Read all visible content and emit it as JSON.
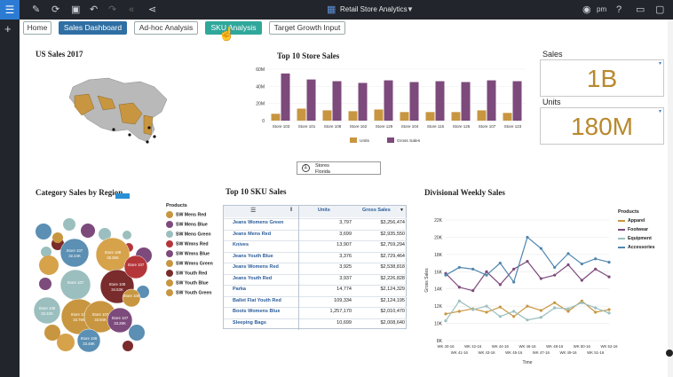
{
  "topbar": {
    "title": "Retail Store Analytics",
    "user": "pm",
    "icons": [
      "menu-icon",
      "pencil-icon",
      "refresh-icon",
      "save-icon",
      "undo-icon",
      "redo-icon",
      "rewind-icon",
      "share-icon",
      "dashboard-icon",
      "chevron-down-icon",
      "user-icon",
      "help-icon",
      "image-icon",
      "comment-icon"
    ]
  },
  "tabs": [
    "Home",
    "Sales Dashboard",
    "Ad-hoc Analysis",
    "SKU Analysis",
    "Target Growth Input"
  ],
  "us_sales": {
    "title": "US Sales 2017"
  },
  "store_sales": {
    "title": "Top 10 Store Sales"
  },
  "filter": {
    "label1": "Stores",
    "label2": "Florida"
  },
  "kpi": {
    "sales_title": "Sales",
    "sales_value": "1B",
    "units_title": "Units",
    "units_value": "180M"
  },
  "category": {
    "title": "Category Sales by Region",
    "legend_title": "Products",
    "products": [
      "SW Mens Red",
      "SW Mens Blue",
      "SW Mens Green",
      "SW Wmns Red",
      "SW Wmns Blue",
      "SW Wmns Green",
      "SW Youth Red",
      "SW Youth Blue",
      "SW Youth Green"
    ],
    "bubbles": [
      {
        "label": "Store 107",
        "value": "32.24K",
        "color": "#5b8fb3"
      },
      {
        "label": "Store 108",
        "value": "35.36K",
        "color": "#d6a24a"
      },
      {
        "label": "Store 107",
        "value": "",
        "color": "#9bbfbe"
      },
      {
        "label": "Store 108",
        "value": "33.76K",
        "color": "#c89640"
      },
      {
        "label": "Store 108",
        "value": "34.53K",
        "color": "#7a2b2b"
      },
      {
        "label": "Store 108",
        "value": "32.22K",
        "color": "#9bbfbe"
      },
      {
        "label": "Store 107",
        "value": "33.94K",
        "color": "#c89640"
      },
      {
        "label": "Store 107",
        "value": "33.28K",
        "color": "#7d4a7c"
      },
      {
        "label": "Store 108",
        "value": "33.48K",
        "color": "#5b8fb3"
      },
      {
        "label": "Store 107",
        "value": "",
        "color": "#b5363a"
      },
      {
        "label": "Store 108",
        "value": "",
        "color": "#c89640"
      }
    ]
  },
  "sku": {
    "title": "Top 10 SKU Sales",
    "headers": [
      "Units",
      "Gross Sales"
    ],
    "rows": [
      {
        "name": "Jeans Womens Green",
        "units": "3,797",
        "gross": "$3,256,474"
      },
      {
        "name": "Jeans Mens Red",
        "units": "3,699",
        "gross": "$2,935,550"
      },
      {
        "name": "Knives",
        "units": "13,907",
        "gross": "$2,759,294"
      },
      {
        "name": "Jeans Youth Blue",
        "units": "3,376",
        "gross": "$2,729,464"
      },
      {
        "name": "Jeans Womens Red",
        "units": "3,925",
        "gross": "$2,538,818"
      },
      {
        "name": "Jeans Youth Red",
        "units": "3,937",
        "gross": "$2,226,828"
      },
      {
        "name": "Parka",
        "units": "14,774",
        "gross": "$2,124,329"
      },
      {
        "name": "Ballet Flat Youth Red",
        "units": "109,334",
        "gross": "$2,124,195"
      },
      {
        "name": "Boots Womens Blue",
        "units": "1,257,170",
        "gross": "$2,010,470"
      },
      {
        "name": "Sleeping Bags",
        "units": "10,699",
        "gross": "$2,008,640"
      }
    ]
  },
  "divisional": {
    "title": "Divisional Weekly Sales",
    "legend_title": "Products",
    "series_names": [
      "Apparel",
      "Footwear",
      "Equipment",
      "Accessories"
    ],
    "colors": [
      "#c89640",
      "#7d4a7c",
      "#9bbfbe",
      "#4f86b0"
    ]
  },
  "chart_data": [
    {
      "type": "bar",
      "title": "Top 10 Store Sales",
      "categories": [
        "Store 103",
        "Store 101",
        "Store 108",
        "Store 162",
        "Store 129",
        "Store 104",
        "Store 115",
        "Store 126",
        "Store 107",
        "Store 123"
      ],
      "series": [
        {
          "name": "Units",
          "values": [
            8,
            14,
            12,
            11,
            13,
            10,
            10,
            10,
            12,
            9
          ]
        },
        {
          "name": "Gross Sales",
          "values": [
            55,
            48,
            46,
            44,
            47,
            45,
            46,
            45,
            47,
            46
          ]
        }
      ],
      "ylim": [
        0,
        60
      ],
      "yticks": [
        "0",
        "20M",
        "40M",
        "60M"
      ]
    },
    {
      "type": "line",
      "title": "Divisional Weekly Sales",
      "xlabel": "Time",
      "ylabel": "Gross Sales",
      "x": [
        "WK 40-16",
        "WK 41-16",
        "WK 42-16",
        "WK 43-16",
        "WK 44-16",
        "WK 45-16",
        "WK 46-16",
        "WK 47-16",
        "WK 48-16",
        "WK 49-16",
        "WK 50-16",
        "WK 51-16",
        "WK 52-16"
      ],
      "ylim": [
        8000,
        22000
      ],
      "yticks": [
        "8K",
        "10K",
        "12K",
        "14K",
        "16K",
        "18K",
        "20K",
        "22K"
      ],
      "series": [
        {
          "name": "Apparel",
          "values": [
            11100,
            11400,
            11700,
            11300,
            11900,
            10800,
            12000,
            11500,
            12400,
            11400,
            12600,
            11300,
            11600
          ]
        },
        {
          "name": "Footwear",
          "values": [
            15800,
            14200,
            13800,
            16000,
            14500,
            16300,
            17200,
            15200,
            15600,
            16800,
            15000,
            16300,
            15400
          ]
        },
        {
          "name": "Equipment",
          "values": [
            10300,
            12600,
            11600,
            12000,
            10800,
            11400,
            10400,
            10700,
            11800,
            11700,
            12400,
            11800,
            11200
          ]
        },
        {
          "name": "Accessories",
          "values": [
            15600,
            16500,
            16300,
            15600,
            17000,
            14800,
            20000,
            18700,
            16500,
            18100,
            16900,
            17500,
            17100
          ]
        }
      ]
    }
  ]
}
